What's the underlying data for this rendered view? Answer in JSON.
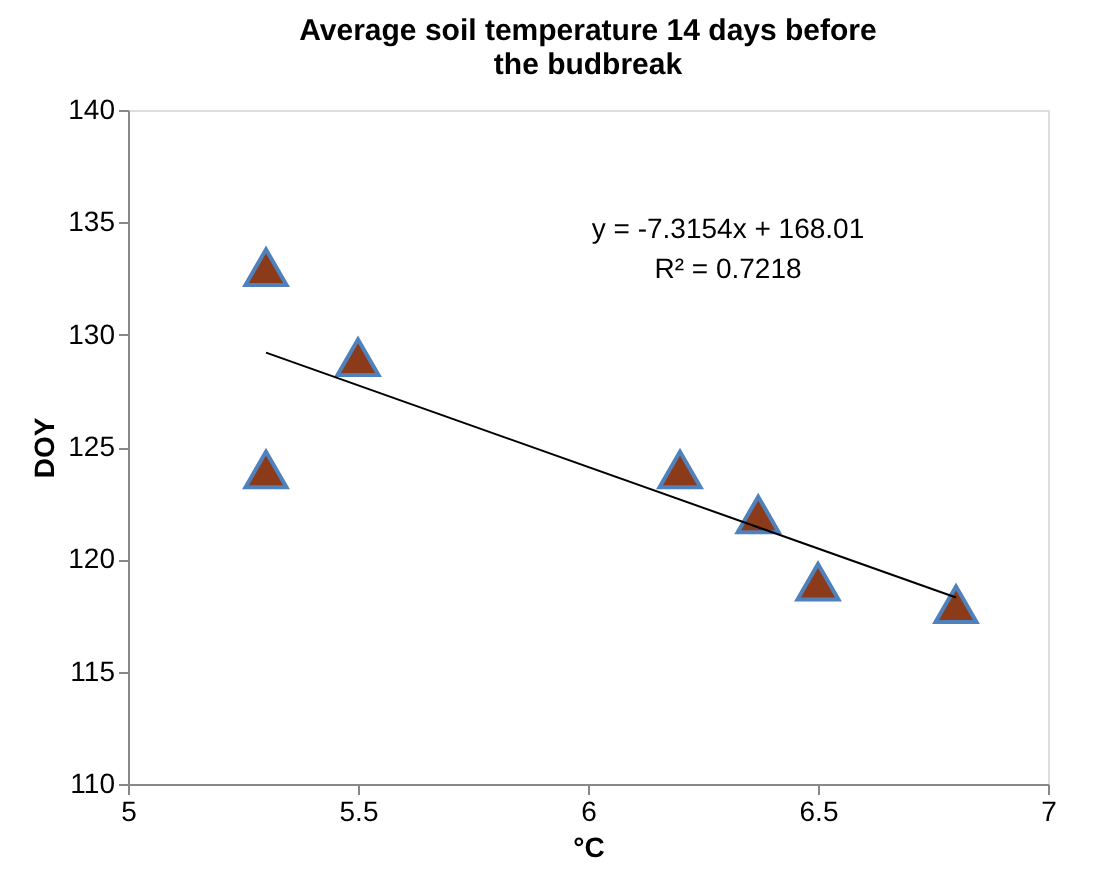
{
  "chart_data": {
    "type": "scatter",
    "title": "Average soil temperature 14 days before the budbreak",
    "xlabel": "°C",
    "ylabel": "DOY",
    "x": [
      5.3,
      5.3,
      5.5,
      6.2,
      6.37,
      6.5,
      6.8
    ],
    "series": [
      {
        "color": "#8b3a1a",
        "marker": "triangle",
        "values": [
          133,
          124,
          129,
          124,
          122,
          119,
          118
        ]
      },
      {
        "type": "line",
        "color": "#000000",
        "x": [
          5.3,
          6.8
        ],
        "values": [
          129.2,
          118.3
        ]
      }
    ],
    "annotations": [
      "y = -7.3154x + 168.01",
      "R² = 0.7218"
    ],
    "xlim": [
      5,
      7
    ],
    "xticks": [
      5,
      5.5,
      6,
      6.5,
      7
    ],
    "ylim": [
      110,
      140
    ],
    "yticks": [
      110,
      115,
      120,
      125,
      130,
      135,
      140
    ],
    "grid": false
  }
}
